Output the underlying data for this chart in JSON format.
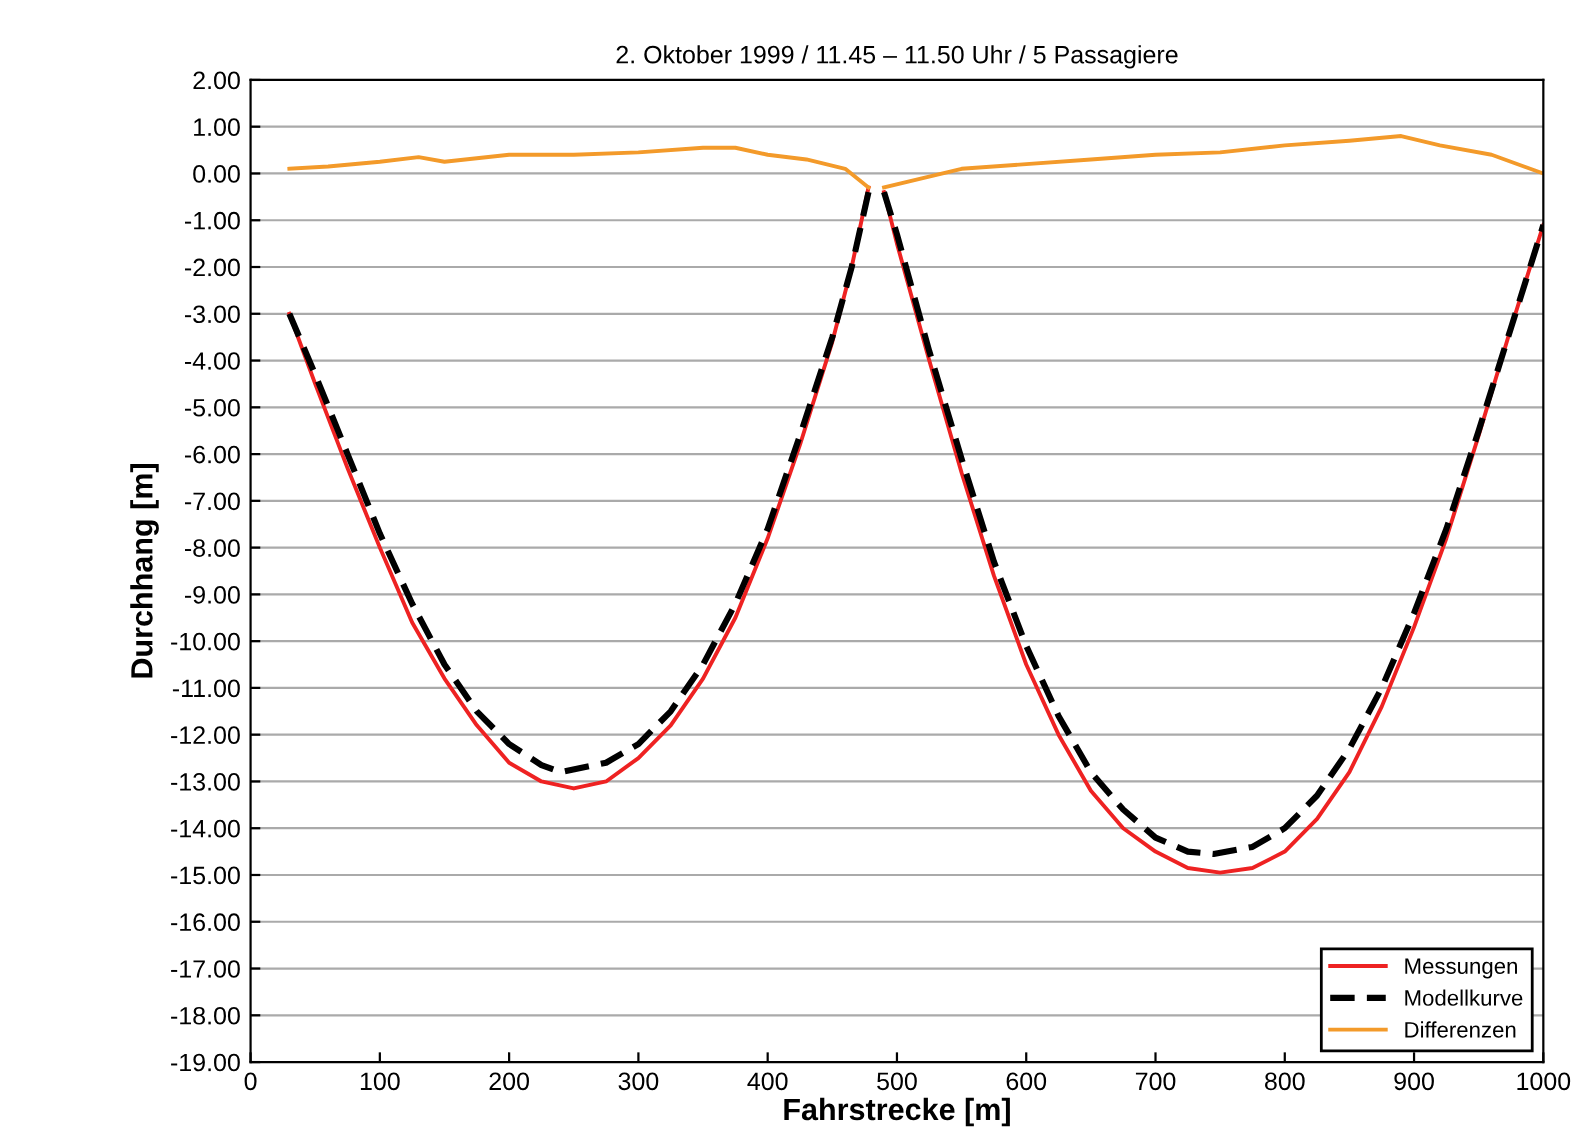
{
  "chart_data": {
    "type": "line",
    "title": "2. Oktober 1999 / 11.45 – 11.50 Uhr / 5 Passagiere",
    "xlabel": "Fahrstrecke [m]",
    "ylabel": "Durchhang [m]",
    "series": [
      {
        "name": "Messungen",
        "color": "#ee2222",
        "line_style": "solid",
        "x": [
          30,
          50,
          75,
          100,
          125,
          150,
          175,
          200,
          225,
          250,
          275,
          300,
          325,
          350,
          375,
          400,
          425,
          450,
          465,
          478,
          484,
          490,
          500,
          525,
          550,
          575,
          600,
          625,
          650,
          675,
          700,
          725,
          750,
          775,
          800,
          825,
          850,
          875,
          900,
          925,
          950,
          975,
          1000
        ],
        "values": [
          -3.0,
          -4.5,
          -6.3,
          -8.0,
          -9.6,
          -10.8,
          -11.8,
          -12.6,
          -13.0,
          -13.15,
          -13.0,
          -12.5,
          -11.8,
          -10.8,
          -9.5,
          -7.8,
          -5.8,
          -3.6,
          -2.0,
          -0.3,
          null,
          -0.4,
          -1.5,
          -4.0,
          -6.4,
          -8.6,
          -10.5,
          -12.0,
          -13.2,
          -14.0,
          -14.5,
          -14.85,
          -14.95,
          -14.85,
          -14.5,
          -13.8,
          -12.8,
          -11.4,
          -9.7,
          -7.8,
          -5.6,
          -3.3,
          -1.1
        ]
      },
      {
        "name": "Modellkurve",
        "color": "#000000",
        "line_style": "dashed",
        "x": [
          30,
          50,
          75,
          100,
          125,
          150,
          175,
          200,
          225,
          240,
          275,
          300,
          325,
          350,
          375,
          400,
          425,
          450,
          465,
          478,
          484,
          490,
          500,
          525,
          550,
          575,
          600,
          625,
          650,
          675,
          700,
          725,
          745,
          775,
          800,
          825,
          850,
          875,
          900,
          925,
          950,
          975,
          1000
        ],
        "values": [
          -3.0,
          -4.3,
          -6.0,
          -7.7,
          -9.2,
          -10.5,
          -11.5,
          -12.2,
          -12.65,
          -12.8,
          -12.6,
          -12.2,
          -11.5,
          -10.5,
          -9.2,
          -7.6,
          -5.6,
          -3.5,
          -2.0,
          -0.4,
          null,
          -0.4,
          -1.3,
          -3.8,
          -6.1,
          -8.3,
          -10.1,
          -11.6,
          -12.8,
          -13.6,
          -14.2,
          -14.5,
          -14.55,
          -14.4,
          -14.0,
          -13.3,
          -12.3,
          -11.0,
          -9.4,
          -7.6,
          -5.5,
          -3.3,
          -1.1
        ]
      },
      {
        "name": "Differenzen",
        "color": "#f39a2a",
        "line_style": "solid",
        "x": [
          30,
          60,
          100,
          130,
          150,
          200,
          250,
          300,
          350,
          375,
          400,
          430,
          460,
          478,
          484,
          490,
          520,
          550,
          600,
          650,
          700,
          750,
          800,
          850,
          890,
          920,
          960,
          1000
        ],
        "values": [
          0.1,
          0.15,
          0.25,
          0.35,
          0.25,
          0.4,
          0.4,
          0.45,
          0.55,
          0.55,
          0.4,
          0.3,
          0.1,
          -0.3,
          null,
          -0.3,
          -0.1,
          0.1,
          0.2,
          0.3,
          0.4,
          0.45,
          0.6,
          0.7,
          0.8,
          0.6,
          0.4,
          0.0
        ]
      }
    ],
    "xlim": [
      0,
      1000
    ],
    "xticks": [
      0,
      100,
      200,
      300,
      400,
      500,
      600,
      700,
      800,
      900,
      1000
    ],
    "ylim": [
      -19,
      2
    ],
    "yticks": [
      {
        "value": 2,
        "label": "2.00"
      },
      {
        "value": 1,
        "label": "1.00"
      },
      {
        "value": 0,
        "label": "0.00"
      },
      {
        "value": -1,
        "label": "-1.00"
      },
      {
        "value": -2,
        "label": "-2.00"
      },
      {
        "value": -3,
        "label": "-3.00"
      },
      {
        "value": -4,
        "label": "-4.00"
      },
      {
        "value": -5,
        "label": "-5.00"
      },
      {
        "value": -6,
        "label": "-6.00"
      },
      {
        "value": -7,
        "label": "-7.00"
      },
      {
        "value": -8,
        "label": "-8.00"
      },
      {
        "value": -9,
        "label": "-9.00"
      },
      {
        "value": -10,
        "label": "-10.00"
      },
      {
        "value": -11,
        "label": "-11.00"
      },
      {
        "value": -12,
        "label": "-12.00"
      },
      {
        "value": -13,
        "label": "-13.00"
      },
      {
        "value": -14,
        "label": "-14.00"
      },
      {
        "value": -15,
        "label": "-15.00"
      },
      {
        "value": -16,
        "label": "-16.00"
      },
      {
        "value": -17,
        "label": "-17.00"
      },
      {
        "value": -18,
        "label": "-18.00"
      },
      {
        "value": -19,
        "label": "-19.00"
      }
    ],
    "grid": "y",
    "legend": "bottom right",
    "marker": "none"
  }
}
